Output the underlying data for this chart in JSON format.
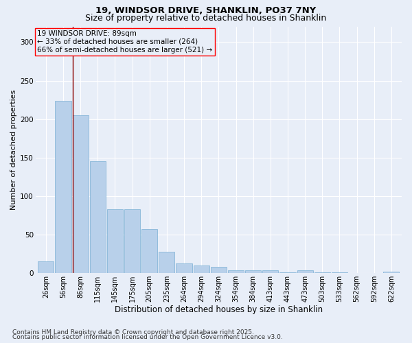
{
  "title1": "19, WINDSOR DRIVE, SHANKLIN, PO37 7NY",
  "title2": "Size of property relative to detached houses in Shanklin",
  "xlabel": "Distribution of detached houses by size in Shanklin",
  "ylabel": "Number of detached properties",
  "footnote1": "Contains HM Land Registry data © Crown copyright and database right 2025.",
  "footnote2": "Contains public sector information licensed under the Open Government Licence v3.0.",
  "bar_labels": [
    "26sqm",
    "56sqm",
    "86sqm",
    "115sqm",
    "145sqm",
    "175sqm",
    "205sqm",
    "235sqm",
    "264sqm",
    "294sqm",
    "324sqm",
    "354sqm",
    "384sqm",
    "413sqm",
    "443sqm",
    "473sqm",
    "503sqm",
    "533sqm",
    "562sqm",
    "592sqm",
    "622sqm"
  ],
  "bar_values": [
    15,
    224,
    205,
    145,
    83,
    83,
    57,
    28,
    13,
    10,
    8,
    4,
    4,
    4,
    1,
    4,
    1,
    1,
    0,
    0,
    2
  ],
  "bar_color": "#b8d0ea",
  "bar_edge_color": "#7aafd4",
  "ylim": [
    0,
    320
  ],
  "yticks": [
    0,
    50,
    100,
    150,
    200,
    250,
    300
  ],
  "annotation_title": "19 WINDSOR DRIVE: 89sqm",
  "annotation_line1": "← 33% of detached houses are smaller (264)",
  "annotation_line2": "66% of semi-detached houses are larger (521) →",
  "red_line_bar_index": 2,
  "background_color": "#e8eef8",
  "grid_color": "#ffffff",
  "title1_fontsize": 9.5,
  "title2_fontsize": 9,
  "xlabel_fontsize": 8.5,
  "ylabel_fontsize": 8,
  "tick_fontsize": 7,
  "annotation_fontsize": 7.5,
  "footnote_fontsize": 6.5
}
